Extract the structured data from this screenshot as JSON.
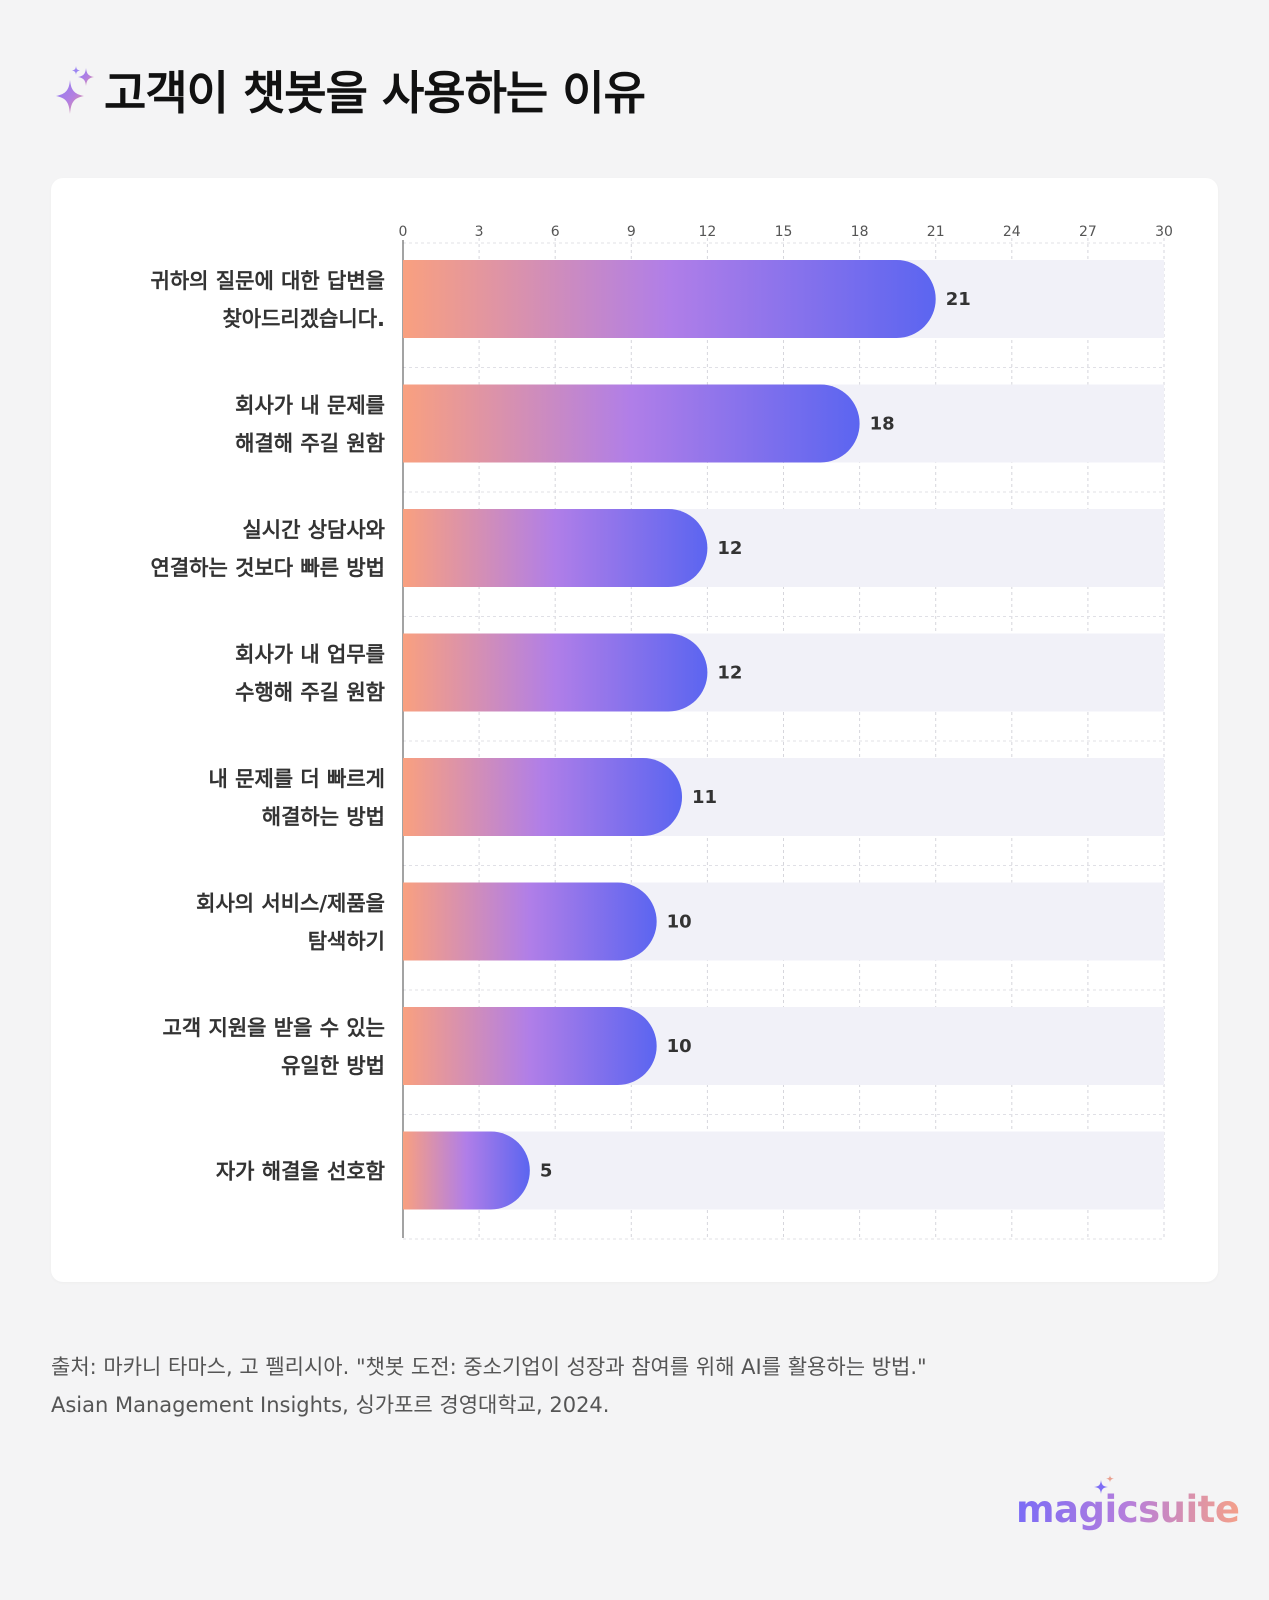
{
  "header": {
    "title": "고객이 챗봇을 사용하는 이유",
    "icon": "sparkle-icon"
  },
  "chart_data": {
    "type": "bar",
    "orientation": "horizontal",
    "title": "고객이 챗봇을 사용하는 이유",
    "xlabel": "",
    "ylabel": "",
    "xlim": [
      0,
      30
    ],
    "ticks": [
      0,
      3,
      6,
      9,
      12,
      15,
      18,
      21,
      24,
      27,
      30
    ],
    "grid": true,
    "categories": [
      [
        "귀하의 질문에 대한 답변을",
        "찾아드리겠습니다."
      ],
      [
        "회사가 내 문제를",
        "해결해 주길 원함"
      ],
      [
        "실시간 상담사와",
        "연결하는 것보다 빠른 방법"
      ],
      [
        "회사가 내 업무를",
        "수행해 주길 원함"
      ],
      [
        "내 문제를 더 빠르게",
        "해결하는 방법"
      ],
      [
        "회사의 서비스/제품을",
        "탐색하기"
      ],
      [
        "고객 지원을 받을 수 있는",
        "유일한 방법"
      ],
      [
        "자가 해결을 선호함"
      ]
    ],
    "values": [
      21,
      18,
      12,
      12,
      11,
      10,
      10,
      5
    ],
    "gradient": [
      "#f9a07f",
      "#b07ee8",
      "#5b65f0"
    ],
    "track_color": "#f1f1f8"
  },
  "source": {
    "line1": "출처: 마카니 타마스, 고 펠리시아. \"챗봇 도전: 중소기업이 성장과 참여를 위해 AI를 활용하는 방법.\"",
    "line2": "Asian Management Insights, 싱가포르 경영대학교, 2024."
  },
  "brand": {
    "name": "magicsuite",
    "icon": "sparkle-icon"
  }
}
